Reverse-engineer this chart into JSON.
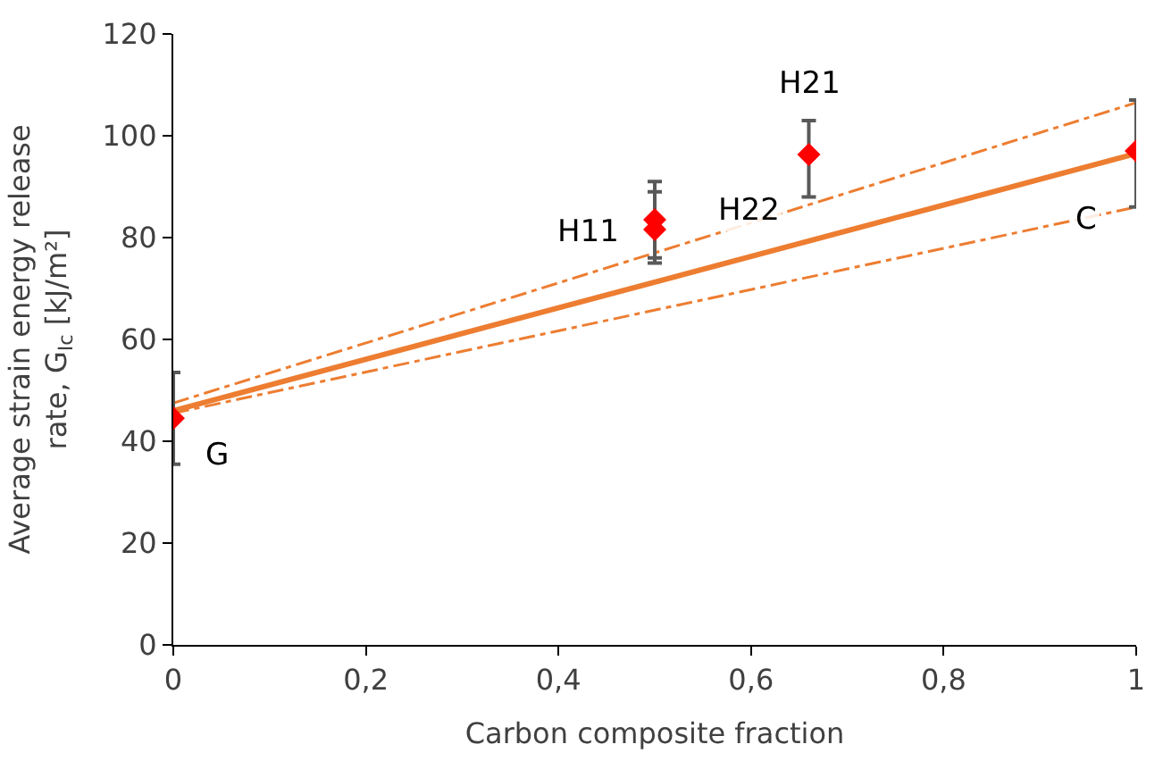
{
  "chart_data": {
    "type": "scatter",
    "xlabel": "Carbon composite fraction",
    "ylabel": "Average strain energy release\nrate, G$_{Ic}$ [kJ/m²]",
    "xlim": [
      0,
      1
    ],
    "ylim": [
      0,
      120
    ],
    "xticks": [
      0,
      {
        "value": 0.2,
        "label": "0,2"
      },
      {
        "value": 0.4,
        "label": "0,4"
      },
      {
        "value": 0.6,
        "label": "0,6"
      },
      {
        "value": 0.8,
        "label": "0,8"
      },
      1
    ],
    "yticks": [
      0,
      20,
      40,
      60,
      80,
      100,
      120
    ],
    "legend": false,
    "series": [
      {
        "type": "line",
        "color": "#ed7d31",
        "x": [
          0,
          1
        ],
        "values": [
          46,
          96.5
        ],
        "line_style": "solid",
        "marker": "none"
      },
      {
        "type": "line",
        "color": "#ed7d31",
        "x": [
          0,
          1
        ],
        "values": [
          47.5,
          106.5
        ],
        "line_style": "dashdot",
        "marker": "none"
      },
      {
        "type": "line",
        "color": "#ed7d31",
        "x": [
          0,
          1
        ],
        "values": [
          45.5,
          86
        ],
        "line_style": "dashdot",
        "marker": "none"
      },
      {
        "color": "#ff0000",
        "marker": "diamond",
        "x": [
          0,
          0.5,
          0.5,
          0.66,
          1
        ],
        "values": [
          44.5,
          83.5,
          81.6,
          96.3,
          97
        ],
        "errors": [
          [
            35.5,
            53.5
          ],
          [
            75,
            91
          ],
          [
            76,
            89
          ],
          [
            88,
            103
          ],
          [
            86,
            107
          ]
        ]
      }
    ],
    "annotations": [
      {
        "text": "G",
        "x": 0,
        "y": 44.5
      },
      {
        "text": "H11",
        "x": 0.5,
        "y": 83.5
      },
      {
        "text": "H22",
        "x": 0.5,
        "y": 81.6
      },
      {
        "text": "H21",
        "x": 0.66,
        "y": 96.3
      },
      {
        "text": "C",
        "x": 1,
        "y": 97
      }
    ]
  }
}
